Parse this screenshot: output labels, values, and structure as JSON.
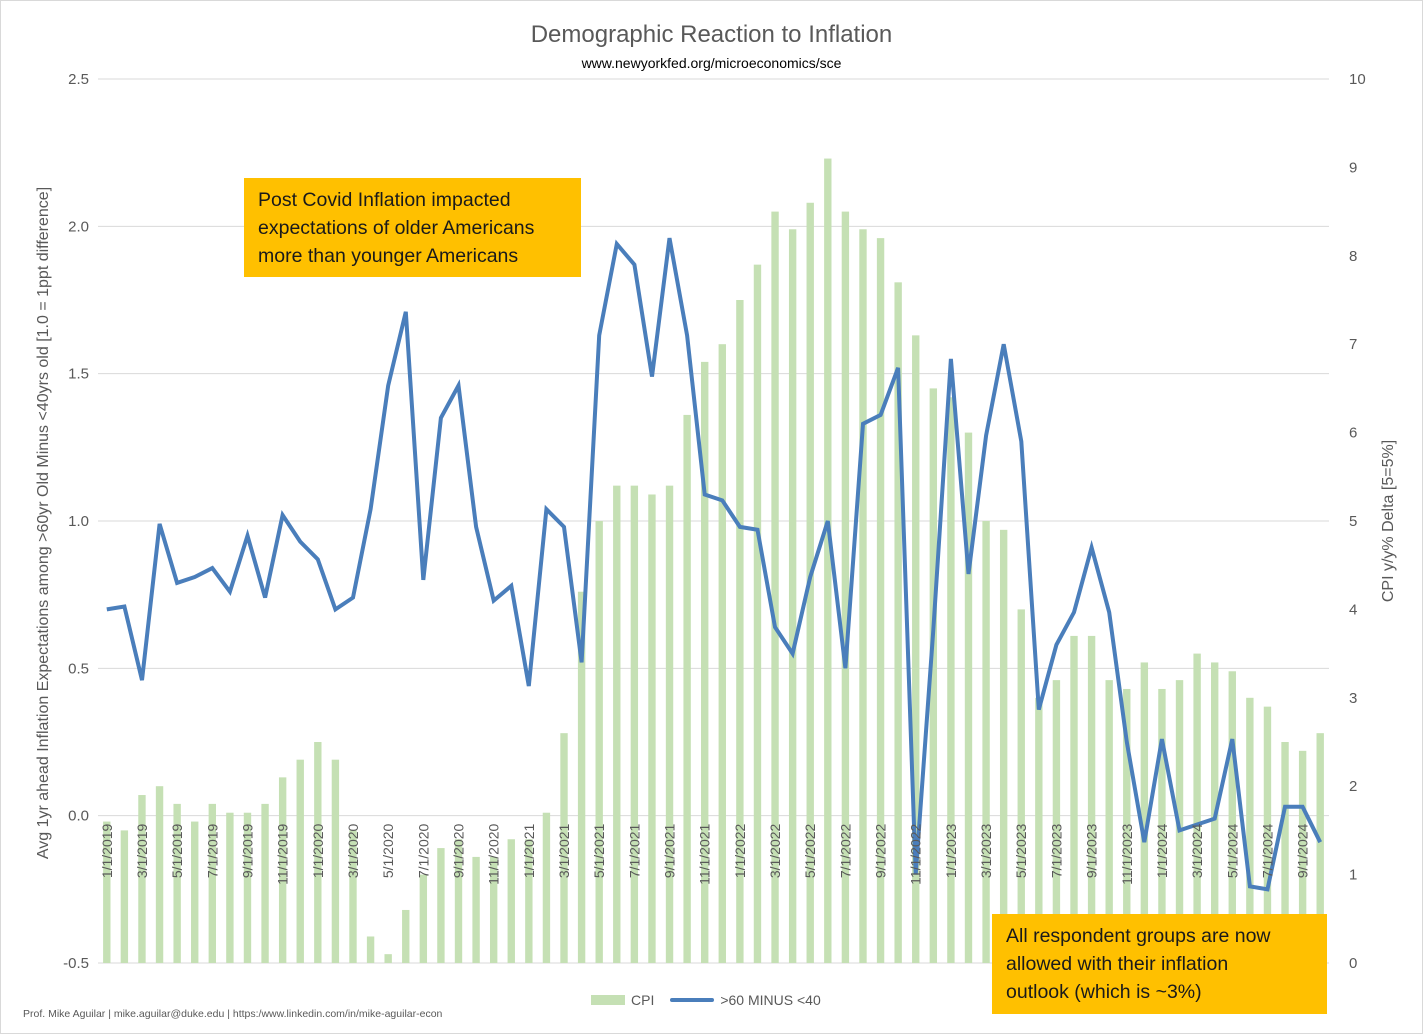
{
  "chart_data": {
    "type": "bar+line",
    "title": "Demographic Reaction to Inflation",
    "subtitle": "www.newyorkfed.org/microeconomics/sce",
    "ylabel_left": "Avg 1yr ahead Inflation Expectations  among >60yr Old Minus <40yrs old [1.0 = 1ppt difference]",
    "ylabel_right": "CPI y/y% Delta [5=5%]",
    "ylim_left": [
      -0.5,
      2.5
    ],
    "ylim_right": [
      0,
      10
    ],
    "yticks_left": [
      "-0.5",
      "0.0",
      "0.5",
      "1.0",
      "1.5",
      "2.0",
      "2.5"
    ],
    "yticks_right": [
      "0",
      "1",
      "2",
      "3",
      "4",
      "5",
      "6",
      "7",
      "8",
      "9",
      "10"
    ],
    "grid": true,
    "legend_position": "bottom",
    "x_start": "1/1/2019",
    "x_tick_labels": [
      "1/1/2019",
      "3/1/2019",
      "5/1/2019",
      "7/1/2019",
      "9/1/2019",
      "11/1/2019",
      "1/1/2020",
      "3/1/2020",
      "5/1/2020",
      "7/1/2020",
      "9/1/2020",
      "11/1/2020",
      "1/1/2021",
      "3/1/2021",
      "5/1/2021",
      "7/1/2021",
      "9/1/2021",
      "11/1/2021",
      "1/1/2022",
      "3/1/2022",
      "5/1/2022",
      "7/1/2022",
      "9/1/2022",
      "11/1/2022",
      "1/1/2023",
      "3/1/2023",
      "5/1/2023",
      "7/1/2023",
      "9/1/2023",
      "11/1/2023",
      "1/1/2024",
      "3/1/2024",
      "5/1/2024",
      "7/1/2024",
      "9/1/2024"
    ],
    "series": [
      {
        "name": "CPI",
        "type": "bar",
        "axis": "right",
        "color": "#c5e0b4",
        "values": [
          1.6,
          1.5,
          1.9,
          2.0,
          1.8,
          1.6,
          1.8,
          1.7,
          1.7,
          1.8,
          2.1,
          2.3,
          2.5,
          2.3,
          1.5,
          0.3,
          0.1,
          0.6,
          1.0,
          1.3,
          1.4,
          1.2,
          1.2,
          1.4,
          1.4,
          1.7,
          2.6,
          4.2,
          5.0,
          5.4,
          5.4,
          5.3,
          5.4,
          6.2,
          6.8,
          7.0,
          7.5,
          7.9,
          8.5,
          8.3,
          8.6,
          9.1,
          8.5,
          8.3,
          8.2,
          7.7,
          7.1,
          6.5,
          6.4,
          6.0,
          5.0,
          4.9,
          4.0,
          3.0,
          3.2,
          3.7,
          3.7,
          3.2,
          3.1,
          3.4,
          3.1,
          3.2,
          3.5,
          3.4,
          3.3,
          3.0,
          2.9,
          2.5,
          2.4,
          2.6
        ]
      },
      {
        "name": ">60 MINUS <40",
        "type": "line",
        "axis": "left",
        "color": "#4a7ebb",
        "values": [
          0.7,
          0.71,
          0.46,
          0.99,
          0.79,
          0.81,
          0.84,
          0.76,
          0.95,
          0.74,
          1.02,
          0.93,
          0.87,
          0.7,
          0.74,
          1.04,
          1.46,
          1.71,
          0.8,
          1.35,
          1.46,
          0.98,
          0.73,
          0.78,
          0.44,
          1.04,
          0.98,
          0.52,
          1.63,
          1.94,
          1.87,
          1.49,
          1.96,
          1.63,
          1.09,
          1.07,
          0.98,
          0.97,
          0.64,
          0.55,
          0.81,
          1.0,
          0.5,
          1.33,
          1.36,
          1.52,
          -0.2,
          0.63,
          1.55,
          0.82,
          1.29,
          1.6,
          1.27,
          0.36,
          0.58,
          0.69,
          0.91,
          0.69,
          0.25,
          -0.09,
          0.26,
          -0.05,
          -0.03,
          -0.01,
          0.26,
          -0.24,
          -0.25,
          0.03,
          0.03,
          -0.09
        ]
      }
    ]
  },
  "callouts": {
    "top": [
      "Post Covid Inflation impacted",
      "expectations of older Americans",
      "more than younger Americans"
    ],
    "bottom": [
      "All respondent groups are now",
      "allowed with their inflation",
      "outlook (which is ~3%)"
    ]
  },
  "legend": {
    "cpi_label": "CPI",
    "line_label": ">60 MINUS <40"
  },
  "footer": "Prof. Mike Aguilar | mike.aguilar@duke.edu | https:/www.linkedin.com/in/mike-aguilar-econ"
}
